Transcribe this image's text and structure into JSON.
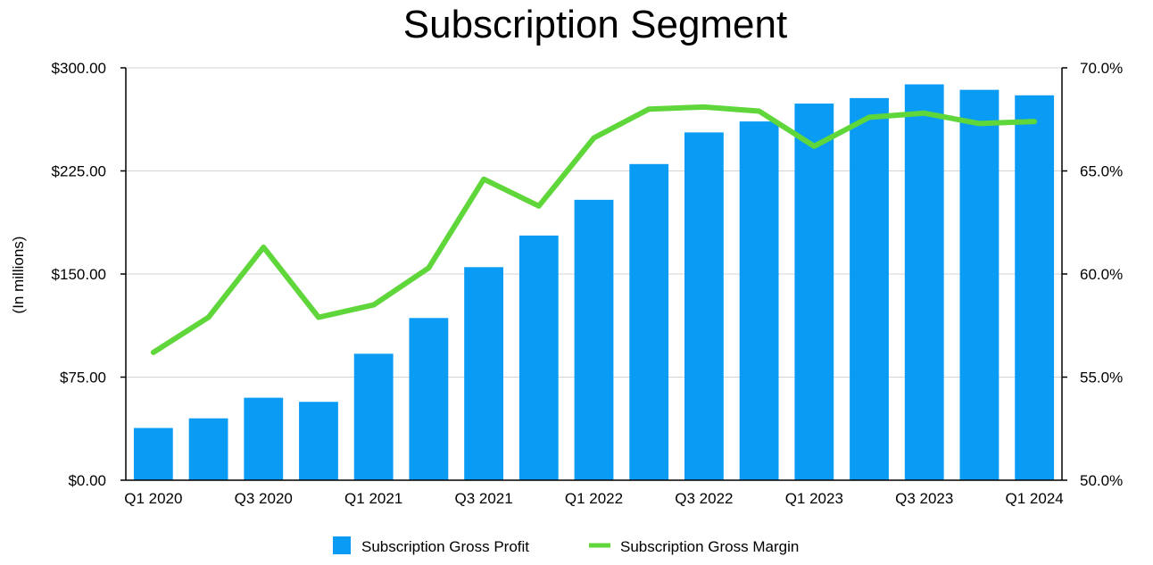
{
  "chart_data": {
    "type": "bar+line",
    "title": "Subscription Segment",
    "ylabel_left": "(In millions)",
    "ylabel_right": "",
    "xlabel": "",
    "categories": [
      "Q1 2020",
      "Q2 2020",
      "Q3 2020",
      "Q4 2020",
      "Q1 2021",
      "Q2 2021",
      "Q3 2021",
      "Q4 2021",
      "Q1 2022",
      "Q2 2022",
      "Q3 2022",
      "Q4 2022",
      "Q1 2023",
      "Q2 2023",
      "Q3 2023",
      "Q4 2023",
      "Q1 2024"
    ],
    "x_tick_labels": [
      "Q1 2020",
      "",
      "Q3 2020",
      "",
      "Q1 2021",
      "",
      "Q3 2021",
      "",
      "Q1 2022",
      "",
      "Q3 2022",
      "",
      "Q1 2023",
      "",
      "Q3 2023",
      "",
      "Q1 2024"
    ],
    "series": [
      {
        "name": "Subscription Gross Profit",
        "type": "bar",
        "axis": "left",
        "color": "#0a9cf5",
        "values": [
          38,
          45,
          60,
          57,
          92,
          118,
          155,
          178,
          204,
          230,
          253,
          261,
          274,
          278,
          288,
          284,
          280
        ]
      },
      {
        "name": "Subscription Gross Margin",
        "type": "line",
        "axis": "right",
        "color": "#5fd63a",
        "values": [
          56.2,
          57.9,
          61.3,
          57.9,
          58.5,
          60.3,
          64.6,
          63.3,
          66.6,
          68.0,
          68.1,
          67.9,
          66.2,
          67.6,
          67.8,
          67.3,
          67.4
        ]
      }
    ],
    "ylim_left": [
      0,
      300
    ],
    "ylim_right": [
      50,
      70
    ],
    "yticks_left": [
      "$0.00",
      "$75.00",
      "$150.00",
      "$225.00",
      "$300.00"
    ],
    "yticks_left_values": [
      0,
      75,
      150,
      225,
      300
    ],
    "yticks_right": [
      "50.0%",
      "55.0%",
      "60.0%",
      "65.0%",
      "70.0%"
    ],
    "yticks_right_values": [
      50,
      55,
      60,
      65,
      70
    ],
    "grid": true,
    "legend_position": "bottom-center"
  }
}
